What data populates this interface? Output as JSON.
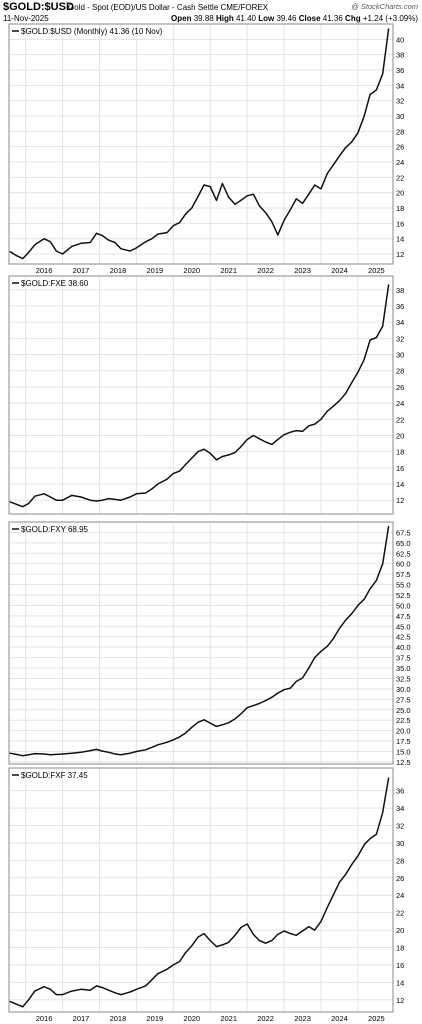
{
  "header": {
    "symbol": "$GOLD:$USD",
    "description": "Gold - Spot (EOD)/US Dollar - Cash Settle CME/FOREX",
    "date": "11-Nov-2025",
    "brand": "@ StockCharts.com",
    "open_label": "Open",
    "open": "39.88",
    "high_label": "High",
    "high": "41.40",
    "low_label": "Low",
    "low": "39.46",
    "close_label": "Close",
    "close": "41.36",
    "chg_label": "Chg",
    "chg": "+1.24 (+3.09%)"
  },
  "colors": {
    "line": "#111111",
    "grid": "#e3e3e3",
    "border": "#8a8a8a",
    "text": "#000000"
  },
  "chart_data": [
    {
      "type": "line",
      "legend": "$GOLD:$USD (Monthly) 41.36 (10 Nov)",
      "yticks": [
        "12",
        "14",
        "16",
        "18",
        "20",
        "22",
        "24",
        "26",
        "28",
        "30",
        "32",
        "34",
        "36",
        "38",
        "40"
      ],
      "ylim": [
        10.7,
        42.0
      ],
      "x": [
        2015.58,
        2015.75,
        2015.92,
        2016.08,
        2016.25,
        2016.5,
        2016.67,
        2016.83,
        2017.0,
        2017.25,
        2017.5,
        2017.75,
        2017.92,
        2018.08,
        2018.25,
        2018.42,
        2018.58,
        2018.83,
        2019.0,
        2019.25,
        2019.42,
        2019.58,
        2019.83,
        2020.0,
        2020.17,
        2020.33,
        2020.5,
        2020.67,
        2020.83,
        2021.0,
        2021.17,
        2021.33,
        2021.5,
        2021.67,
        2021.83,
        2022.0,
        2022.17,
        2022.33,
        2022.5,
        2022.67,
        2022.83,
        2023.0,
        2023.17,
        2023.33,
        2023.5,
        2023.67,
        2023.83,
        2024.0,
        2024.17,
        2024.33,
        2024.5,
        2024.67,
        2024.83,
        2025.0,
        2025.17,
        2025.33,
        2025.5,
        2025.67,
        2025.83
      ],
      "values": [
        12.3,
        11.8,
        11.4,
        12.2,
        13.2,
        14.0,
        13.6,
        12.4,
        12.0,
        13.0,
        13.4,
        13.5,
        14.7,
        14.4,
        13.8,
        13.5,
        12.7,
        12.4,
        12.8,
        13.6,
        14.0,
        14.6,
        14.8,
        15.7,
        16.1,
        17.2,
        18.0,
        19.5,
        21.0,
        20.8,
        19.0,
        21.2,
        19.4,
        18.5,
        19.0,
        19.6,
        19.8,
        18.3,
        17.4,
        16.2,
        14.5,
        16.4,
        17.8,
        19.2,
        18.6,
        19.8,
        21.0,
        20.5,
        22.5,
        23.6,
        24.8,
        25.9,
        26.6,
        27.8,
        30.0,
        32.8,
        33.4,
        35.5,
        41.36
      ],
      "series": [
        {
          "name": "$GOLD:$USD",
          "values_ref": "values"
        }
      ]
    },
    {
      "type": "line",
      "legend": "$GOLD:FXE 38.60",
      "yticks": [
        "12",
        "14",
        "16",
        "18",
        "20",
        "22",
        "24",
        "26",
        "28",
        "30",
        "32",
        "34",
        "36",
        "38"
      ],
      "ylim": [
        10.3,
        39.7
      ],
      "x": [
        2015.58,
        2015.75,
        2015.92,
        2016.08,
        2016.25,
        2016.5,
        2016.67,
        2016.83,
        2017.0,
        2017.25,
        2017.5,
        2017.75,
        2017.92,
        2018.08,
        2018.25,
        2018.42,
        2018.58,
        2018.83,
        2019.0,
        2019.25,
        2019.42,
        2019.58,
        2019.83,
        2020.0,
        2020.17,
        2020.33,
        2020.5,
        2020.67,
        2020.83,
        2021.0,
        2021.17,
        2021.33,
        2021.5,
        2021.67,
        2021.83,
        2022.0,
        2022.17,
        2022.33,
        2022.5,
        2022.67,
        2022.83,
        2023.0,
        2023.17,
        2023.33,
        2023.5,
        2023.67,
        2023.83,
        2024.0,
        2024.17,
        2024.33,
        2024.5,
        2024.67,
        2024.83,
        2025.0,
        2025.17,
        2025.33,
        2025.5,
        2025.67,
        2025.83
      ],
      "values": [
        11.8,
        11.5,
        11.2,
        11.6,
        12.5,
        12.8,
        12.4,
        12.0,
        12.0,
        12.6,
        12.4,
        12.0,
        11.9,
        12.0,
        12.2,
        12.1,
        12.0,
        12.4,
        12.8,
        12.9,
        13.4,
        14.0,
        14.6,
        15.3,
        15.6,
        16.4,
        17.2,
        18.0,
        18.3,
        17.8,
        17.0,
        17.4,
        17.6,
        17.9,
        18.6,
        19.5,
        20.0,
        19.6,
        19.2,
        18.9,
        19.5,
        20.1,
        20.4,
        20.6,
        20.5,
        21.2,
        21.4,
        22.0,
        23.0,
        23.6,
        24.3,
        25.2,
        26.5,
        27.8,
        29.4,
        31.8,
        32.1,
        33.5,
        38.6
      ],
      "series": [
        {
          "name": "$GOLD:FXE",
          "values_ref": "values"
        }
      ]
    },
    {
      "type": "line",
      "legend": "$GOLD:FXY 68.95",
      "yticks": [
        "12.5",
        "15.0",
        "17.5",
        "20.0",
        "22.5",
        "25.0",
        "27.5",
        "30.0",
        "32.5",
        "35.0",
        "37.5",
        "40.0",
        "42.5",
        "45.0",
        "47.5",
        "50.0",
        "52.5",
        "55.0",
        "57.5",
        "60.0",
        "62.5",
        "65.0",
        "67.5"
      ],
      "ylim": [
        12.0,
        70.0
      ],
      "x": [
        2015.58,
        2015.75,
        2015.92,
        2016.08,
        2016.25,
        2016.5,
        2016.67,
        2016.83,
        2017.0,
        2017.25,
        2017.5,
        2017.75,
        2017.92,
        2018.08,
        2018.25,
        2018.42,
        2018.58,
        2018.83,
        2019.0,
        2019.25,
        2019.42,
        2019.58,
        2019.83,
        2020.0,
        2020.17,
        2020.33,
        2020.5,
        2020.67,
        2020.83,
        2021.0,
        2021.17,
        2021.33,
        2021.5,
        2021.67,
        2021.83,
        2022.0,
        2022.17,
        2022.33,
        2022.5,
        2022.67,
        2022.83,
        2023.0,
        2023.17,
        2023.33,
        2023.5,
        2023.67,
        2023.83,
        2024.0,
        2024.17,
        2024.33,
        2024.5,
        2024.67,
        2024.83,
        2025.0,
        2025.17,
        2025.33,
        2025.5,
        2025.67,
        2025.83
      ],
      "values": [
        14.6,
        14.3,
        14.0,
        14.2,
        14.5,
        14.4,
        14.2,
        14.3,
        14.4,
        14.6,
        14.8,
        15.2,
        15.5,
        15.1,
        14.8,
        14.4,
        14.2,
        14.6,
        15.0,
        15.4,
        16.0,
        16.6,
        17.2,
        17.8,
        18.5,
        19.4,
        20.8,
        22.0,
        22.6,
        21.8,
        21.0,
        21.4,
        21.9,
        22.8,
        24.0,
        25.5,
        26.0,
        26.5,
        27.2,
        28.0,
        29.0,
        29.8,
        30.2,
        31.8,
        32.6,
        35.0,
        37.5,
        39.0,
        40.2,
        42.0,
        44.5,
        46.5,
        48.0,
        50.0,
        51.5,
        54.0,
        56.0,
        60.0,
        68.95
      ],
      "series": [
        {
          "name": "$GOLD:FXY",
          "values_ref": "values"
        }
      ]
    },
    {
      "type": "line",
      "legend": "$GOLD:FXF 37.45",
      "yticks": [
        "12",
        "14",
        "16",
        "18",
        "20",
        "22",
        "24",
        "26",
        "28",
        "30",
        "32",
        "34",
        "36"
      ],
      "ylim": [
        10.6,
        38.6
      ],
      "xticks": [
        "2016",
        "2017",
        "2018",
        "2019",
        "2020",
        "2021",
        "2022",
        "2023",
        "2024",
        "2025"
      ],
      "x": [
        2015.58,
        2015.75,
        2015.92,
        2016.08,
        2016.25,
        2016.5,
        2016.67,
        2016.83,
        2017.0,
        2017.25,
        2017.5,
        2017.75,
        2017.92,
        2018.08,
        2018.25,
        2018.42,
        2018.58,
        2018.83,
        2019.0,
        2019.25,
        2019.42,
        2019.58,
        2019.83,
        2020.0,
        2020.17,
        2020.33,
        2020.5,
        2020.67,
        2020.83,
        2021.0,
        2021.17,
        2021.33,
        2021.5,
        2021.67,
        2021.83,
        2022.0,
        2022.17,
        2022.33,
        2022.5,
        2022.67,
        2022.83,
        2023.0,
        2023.17,
        2023.33,
        2023.5,
        2023.67,
        2023.83,
        2024.0,
        2024.17,
        2024.33,
        2024.5,
        2024.67,
        2024.83,
        2025.0,
        2025.17,
        2025.33,
        2025.5,
        2025.67,
        2025.83
      ],
      "values": [
        11.8,
        11.5,
        11.2,
        12.0,
        13.0,
        13.5,
        13.2,
        12.6,
        12.6,
        13.0,
        13.2,
        13.1,
        13.6,
        13.4,
        13.1,
        12.8,
        12.6,
        12.9,
        13.2,
        13.6,
        14.3,
        15.0,
        15.5,
        16.0,
        16.4,
        17.4,
        18.2,
        19.2,
        19.6,
        18.8,
        18.1,
        18.3,
        18.6,
        19.4,
        20.3,
        20.7,
        19.5,
        18.8,
        18.5,
        18.8,
        19.5,
        19.9,
        19.6,
        19.4,
        19.9,
        20.4,
        20.0,
        21.0,
        22.6,
        24.0,
        25.5,
        26.4,
        27.5,
        28.5,
        29.8,
        30.5,
        31.0,
        33.5,
        37.45
      ],
      "series": [
        {
          "name": "$GOLD:FXF",
          "values_ref": "values"
        }
      ]
    }
  ]
}
